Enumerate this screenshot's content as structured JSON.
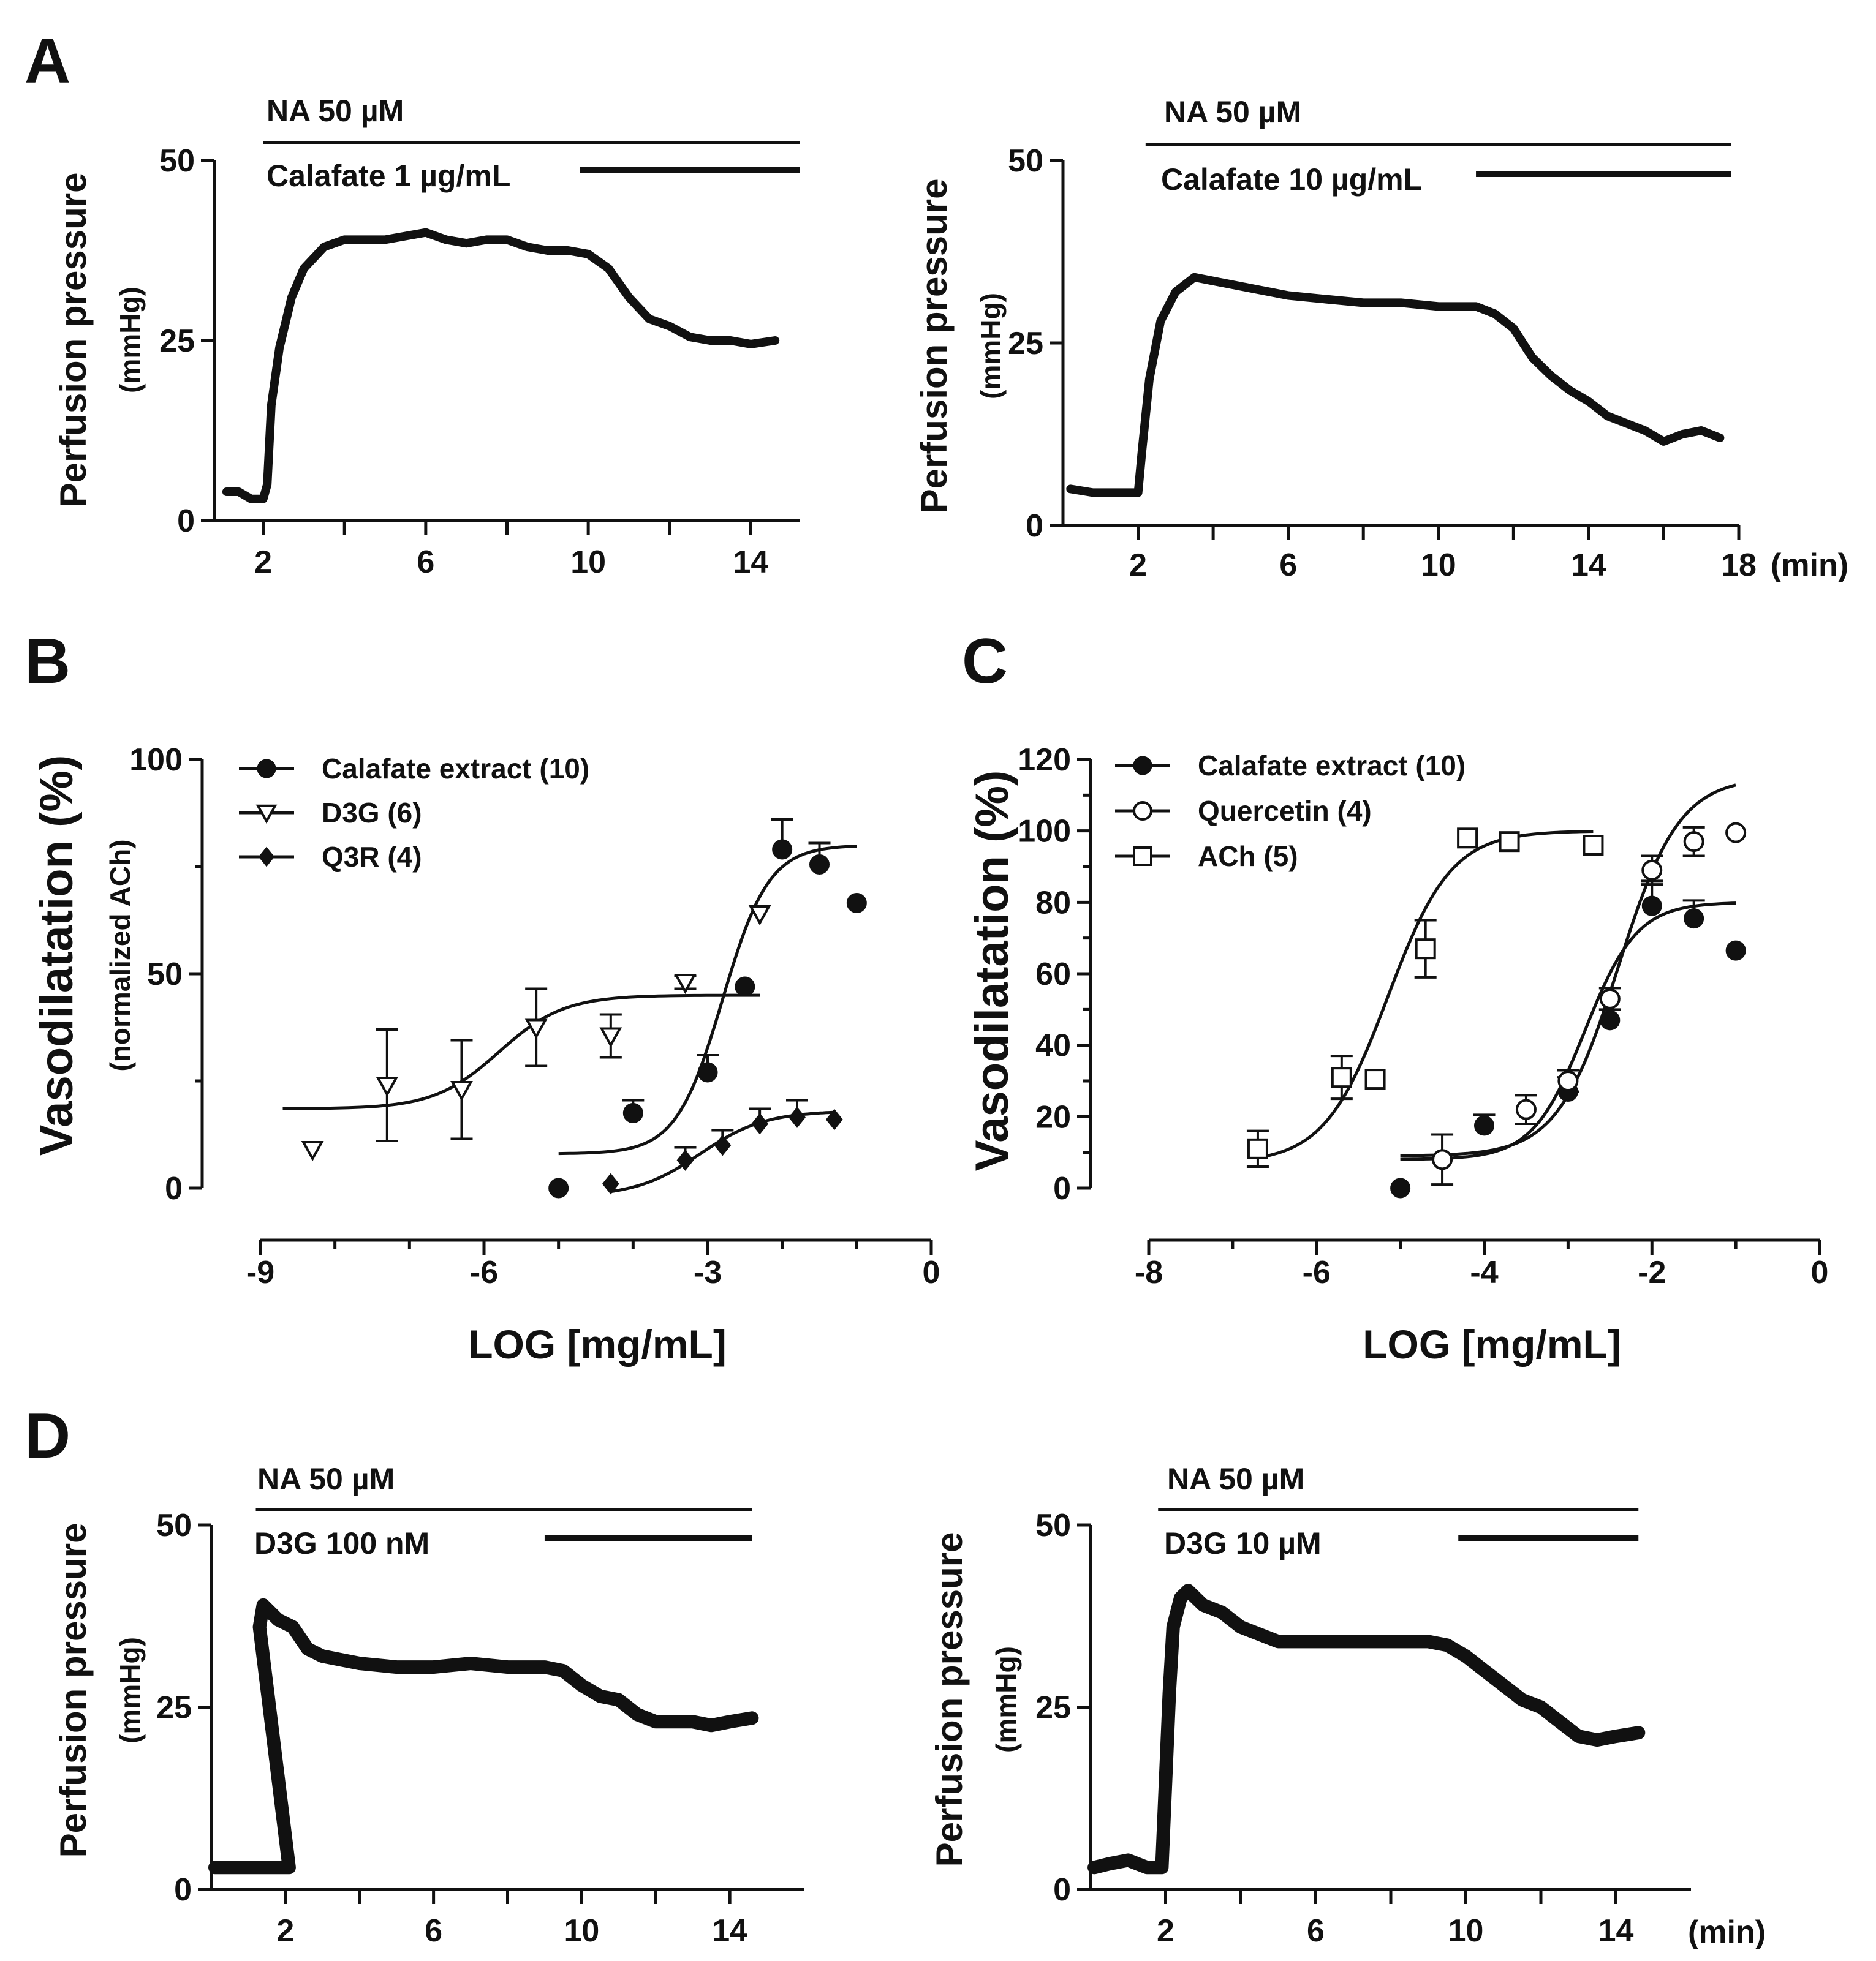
{
  "panels": {
    "A": "A",
    "B": "B",
    "C": "C",
    "D": "D"
  },
  "traces": [
    {
      "id": "A-left",
      "ylabel": "Perfusion pressure",
      "yunit": "(mmHg)",
      "yticks": [
        0,
        25,
        50
      ],
      "xticks": [
        2,
        6,
        10,
        14
      ],
      "xunit": "",
      "xlim": [
        0.8,
        15.2
      ],
      "ylim": [
        0,
        50
      ],
      "top_label": "NA 50 µM",
      "top_span": [
        2,
        15.2
      ],
      "drug_label": "Calafate 1 µg/mL",
      "drug_span": [
        9.8,
        15.2
      ],
      "points": [
        [
          1.1,
          4
        ],
        [
          1.4,
          4
        ],
        [
          1.7,
          3
        ],
        [
          2.0,
          3
        ],
        [
          2.1,
          5
        ],
        [
          2.2,
          16
        ],
        [
          2.4,
          24
        ],
        [
          2.7,
          31
        ],
        [
          3.0,
          35
        ],
        [
          3.5,
          38
        ],
        [
          4.0,
          39
        ],
        [
          4.5,
          39
        ],
        [
          5.0,
          39
        ],
        [
          5.5,
          39.5
        ],
        [
          6.0,
          40
        ],
        [
          6.5,
          39
        ],
        [
          7.0,
          38.5
        ],
        [
          7.5,
          39
        ],
        [
          8.0,
          39
        ],
        [
          8.5,
          38
        ],
        [
          9.0,
          37.5
        ],
        [
          9.5,
          37.5
        ],
        [
          10.0,
          37
        ],
        [
          10.5,
          35
        ],
        [
          11.0,
          31
        ],
        [
          11.5,
          28
        ],
        [
          12.0,
          27
        ],
        [
          12.5,
          25.5
        ],
        [
          13.0,
          25
        ],
        [
          13.5,
          25
        ],
        [
          14.0,
          24.5
        ],
        [
          14.6,
          25
        ]
      ]
    },
    {
      "id": "A-right",
      "ylabel": "Perfusion pressure",
      "yunit": "(mmHg)",
      "yticks": [
        0,
        25,
        50
      ],
      "xticks": [
        2,
        6,
        10,
        14,
        18
      ],
      "xunit": "(min)",
      "xlim": [
        0,
        18
      ],
      "ylim": [
        0,
        50
      ],
      "top_label": "NA 50 µM",
      "top_span": [
        2.2,
        17.8
      ],
      "drug_label": "Calafate 10 µg/mL",
      "drug_span": [
        11.0,
        17.8
      ],
      "points": [
        [
          0.2,
          5
        ],
        [
          0.8,
          4.5
        ],
        [
          1.5,
          4.5
        ],
        [
          2.0,
          4.5
        ],
        [
          2.1,
          10
        ],
        [
          2.3,
          20
        ],
        [
          2.6,
          28
        ],
        [
          3.0,
          32
        ],
        [
          3.5,
          34
        ],
        [
          4.0,
          33.5
        ],
        [
          5.0,
          32.5
        ],
        [
          6.0,
          31.5
        ],
        [
          7.0,
          31
        ],
        [
          8.0,
          30.5
        ],
        [
          9.0,
          30.5
        ],
        [
          10.0,
          30
        ],
        [
          11.0,
          30
        ],
        [
          11.5,
          29
        ],
        [
          12.0,
          27
        ],
        [
          12.5,
          23
        ],
        [
          13.0,
          20.5
        ],
        [
          13.5,
          18.5
        ],
        [
          14.0,
          17
        ],
        [
          14.5,
          15
        ],
        [
          15.0,
          14
        ],
        [
          15.5,
          13
        ],
        [
          16.0,
          11.5
        ],
        [
          16.5,
          12.5
        ],
        [
          17.0,
          13
        ],
        [
          17.5,
          12
        ]
      ]
    },
    {
      "id": "D-left",
      "ylabel": "Perfusion pressure",
      "yunit": "(mmHg)",
      "yticks": [
        0,
        25,
        50
      ],
      "xticks": [
        2,
        6,
        10,
        14
      ],
      "xunit": "",
      "xlim": [
        0,
        16
      ],
      "ylim": [
        0,
        50
      ],
      "top_label": "NA 50 µM",
      "top_span": [
        1.2,
        14.6
      ],
      "drug_label": "D3G 100 nM",
      "drug_span": [
        9.0,
        14.6
      ],
      "points": [
        [
          0.1,
          3
        ],
        [
          0.6,
          3
        ],
        [
          1.2,
          3
        ],
        [
          1.9,
          3
        ],
        [
          2.1,
          3
        ],
        [
          1.3,
          36
        ],
        [
          1.4,
          39
        ],
        [
          1.8,
          37
        ],
        [
          2.2,
          36
        ],
        [
          2.6,
          33
        ],
        [
          3.0,
          32
        ],
        [
          4.0,
          31
        ],
        [
          5.0,
          30.5
        ],
        [
          6.0,
          30.5
        ],
        [
          7.0,
          31
        ],
        [
          8.0,
          30.5
        ],
        [
          9.0,
          30.5
        ],
        [
          9.5,
          30
        ],
        [
          10.0,
          28
        ],
        [
          10.5,
          26.5
        ],
        [
          11.0,
          26
        ],
        [
          11.5,
          24
        ],
        [
          12.0,
          23
        ],
        [
          12.5,
          23
        ],
        [
          13.0,
          23
        ],
        [
          13.5,
          22.5
        ],
        [
          14.0,
          23
        ],
        [
          14.6,
          23.5
        ]
      ]
    },
    {
      "id": "D-right",
      "ylabel": "Perfusion pressure",
      "yunit": "(mmHg)",
      "yticks": [
        0,
        25,
        50
      ],
      "xticks": [
        2,
        6,
        10,
        14
      ],
      "xunit": "(min)",
      "xlim": [
        0,
        16
      ],
      "ylim": [
        0,
        50
      ],
      "top_label": "NA 50 µM",
      "top_span": [
        1.8,
        14.6
      ],
      "drug_label": "D3G 10 µM",
      "drug_span": [
        9.8,
        14.6
      ],
      "points": [
        [
          0.1,
          3
        ],
        [
          0.5,
          3.5
        ],
        [
          1.0,
          4
        ],
        [
          1.5,
          3
        ],
        [
          1.9,
          3
        ],
        [
          2.0,
          15
        ],
        [
          2.1,
          27
        ],
        [
          2.2,
          36
        ],
        [
          2.4,
          40
        ],
        [
          2.6,
          41
        ],
        [
          3.0,
          39
        ],
        [
          3.5,
          38
        ],
        [
          4.0,
          36
        ],
        [
          4.5,
          35
        ],
        [
          5.0,
          34
        ],
        [
          6.0,
          34
        ],
        [
          7.0,
          34
        ],
        [
          8.0,
          34
        ],
        [
          9.0,
          34
        ],
        [
          9.5,
          33.5
        ],
        [
          10.0,
          32
        ],
        [
          10.5,
          30
        ],
        [
          11.0,
          28
        ],
        [
          11.5,
          26
        ],
        [
          12.0,
          25
        ],
        [
          12.5,
          23
        ],
        [
          13.0,
          21
        ],
        [
          13.5,
          20.5
        ],
        [
          14.0,
          21
        ],
        [
          14.6,
          21.5
        ]
      ]
    }
  ],
  "chart_data": [
    {
      "type": "scatter",
      "panel": "B",
      "title": "",
      "xlabel": "LOG [mg/mL]",
      "ylabel": "Vasodilatation (%)",
      "ylabel2": "(normalized ACh)",
      "xlim": [
        -9,
        0
      ],
      "ylim": [
        0,
        100
      ],
      "xticks": [
        -9,
        -6,
        -3,
        0
      ],
      "yticks": [
        0,
        50,
        100
      ],
      "legend_position": "top-left",
      "series": [
        {
          "name": "Calafate extract (10)",
          "marker": "filled-circle",
          "x": [
            -5.0,
            -4.0,
            -3.0,
            -2.5,
            -2.0,
            -1.5,
            -1.0
          ],
          "y": [
            0,
            17.5,
            27,
            47,
            79,
            75.5,
            66.5
          ],
          "err": [
            0,
            3,
            4,
            0,
            7,
            5,
            0
          ],
          "fit": {
            "bottom": 8,
            "top": 80,
            "logec50": -2.8,
            "hill": 1.4,
            "from": -5.0,
            "to": -1.0
          }
        },
        {
          "name": "D3G (6)",
          "marker": "open-triangle-down",
          "x": [
            -8.3,
            -7.3,
            -6.3,
            -5.3,
            -4.3,
            -3.3,
            -2.3
          ],
          "y": [
            9,
            24,
            23,
            37.5,
            35.5,
            48,
            64
          ],
          "err": [
            0,
            13,
            11.5,
            9,
            5,
            1.5,
            0
          ],
          "fit": {
            "bottom": 18.5,
            "top": 45,
            "logec50": -5.8,
            "hill": 1.0,
            "from": -8.7,
            "to": -2.3
          }
        },
        {
          "name": "Q3R (4)",
          "marker": "filled-diamond",
          "x": [
            -4.3,
            -3.3,
            -2.8,
            -2.3,
            -1.8,
            -1.3
          ],
          "y": [
            1,
            6.5,
            10,
            15,
            16.5,
            16
          ],
          "err": [
            0,
            3,
            3.5,
            3.5,
            4,
            0
          ],
          "fit": {
            "bottom": -2,
            "top": 18,
            "logec50": -3.1,
            "hill": 1.0,
            "from": -4.3,
            "to": -1.3
          }
        }
      ]
    },
    {
      "type": "scatter",
      "panel": "C",
      "title": "",
      "xlabel": "LOG [mg/mL]",
      "ylabel": "Vasodilatation (%)",
      "xlim": [
        -8,
        0
      ],
      "ylim": [
        0,
        120
      ],
      "xticks": [
        -8,
        -6,
        -4,
        -2,
        0
      ],
      "yticks": [
        0,
        20,
        40,
        60,
        80,
        100,
        120
      ],
      "legend_position": "top-left",
      "series": [
        {
          "name": "Calafate extract (10)",
          "marker": "filled-circle",
          "x": [
            -5.0,
            -4.0,
            -3.0,
            -2.5,
            -2.0,
            -1.5,
            -1.0
          ],
          "y": [
            0,
            17.5,
            27,
            47,
            79,
            75.5,
            66.5
          ],
          "err": [
            0,
            3,
            4,
            0,
            7,
            5,
            0
          ],
          "fit": {
            "bottom": 8,
            "top": 80,
            "logec50": -2.8,
            "hill": 1.4,
            "from": -5.0,
            "to": -1.0
          }
        },
        {
          "name": "Quercetin (4)",
          "marker": "open-circle",
          "x": [
            -4.5,
            -3.5,
            -3.0,
            -2.5,
            -2.0,
            -1.5,
            -1.0
          ],
          "y": [
            8,
            22,
            30,
            53,
            89,
            97,
            99.5
          ],
          "err": [
            7,
            4,
            3,
            3,
            4,
            4,
            0
          ],
          "fit": {
            "bottom": 9,
            "top": 115,
            "logec50": -2.4,
            "hill": 1.2,
            "from": -5.0,
            "to": -1.0
          }
        },
        {
          "name": "ACh (5)",
          "marker": "open-square",
          "x": [
            -6.7,
            -5.7,
            -5.3,
            -4.7,
            -4.2,
            -3.7,
            -2.7
          ],
          "y": [
            11,
            31,
            30.5,
            67,
            98,
            97,
            96
          ],
          "err": [
            5,
            6,
            0,
            8,
            0,
            0,
            0
          ],
          "fit": {
            "bottom": 7,
            "top": 100,
            "logec50": -5.15,
            "hill": 1.15,
            "from": -6.7,
            "to": -2.7
          }
        }
      ]
    }
  ]
}
